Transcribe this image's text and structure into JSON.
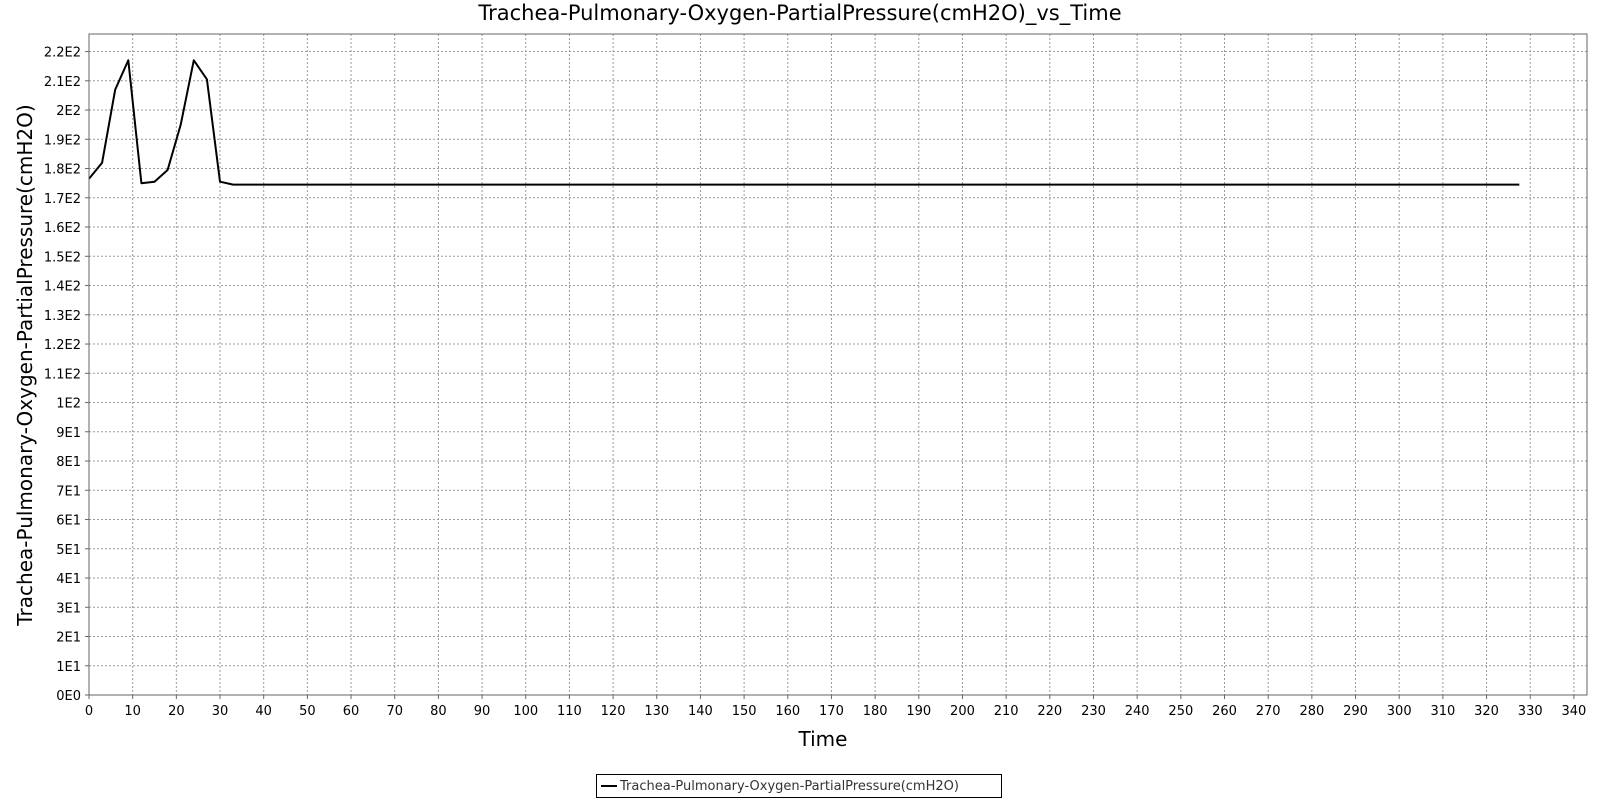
{
  "chart_data": {
    "type": "line",
    "title": "Trachea-Pulmonary-Oxygen-PartialPressure(cmH2O)_vs_Time",
    "xlabel": "Time",
    "ylabel": "Trachea-Pulmonary-Oxygen-PartialPressure(cmH2O)",
    "xlim": [
      0,
      343
    ],
    "ylim": [
      0,
      226
    ],
    "x_ticks": [
      0,
      10,
      20,
      30,
      40,
      50,
      60,
      70,
      80,
      90,
      100,
      110,
      120,
      130,
      140,
      150,
      160,
      170,
      180,
      190,
      200,
      210,
      220,
      230,
      240,
      250,
      260,
      270,
      280,
      290,
      300,
      310,
      320,
      330,
      340
    ],
    "y_ticks": [
      0,
      10,
      20,
      30,
      40,
      50,
      60,
      70,
      80,
      90,
      100,
      110,
      120,
      130,
      140,
      150,
      160,
      170,
      180,
      190,
      200,
      210,
      220
    ],
    "y_tick_labels": [
      "0E0",
      "1E1",
      "2E1",
      "3E1",
      "4E1",
      "5E1",
      "6E1",
      "7E1",
      "8E1",
      "9E1",
      "1E2",
      "1.1E2",
      "1.2E2",
      "1.3E2",
      "1.4E2",
      "1.5E2",
      "1.6E2",
      "1.7E2",
      "1.8E2",
      "1.9E2",
      "2E2",
      "2.1E2",
      "2.2E2"
    ],
    "grid": true,
    "legend_position": "bottom-center",
    "series": [
      {
        "name": "Trachea-Pulmonary-Oxygen-PartialPressure(cmH2O)",
        "color": "#000000",
        "x": [
          0,
          3,
          6,
          9,
          12,
          15,
          18,
          21,
          24,
          27,
          30,
          33,
          40,
          80,
          120,
          160,
          200,
          240,
          280,
          320,
          327.5
        ],
        "y": [
          176.5,
          182,
          207,
          217,
          175,
          175.5,
          179.5,
          195,
          217,
          210.5,
          175.5,
          174.5,
          174.5,
          174.5,
          174.5,
          174.5,
          174.5,
          174.5,
          174.5,
          174.5,
          174.5
        ]
      }
    ]
  }
}
